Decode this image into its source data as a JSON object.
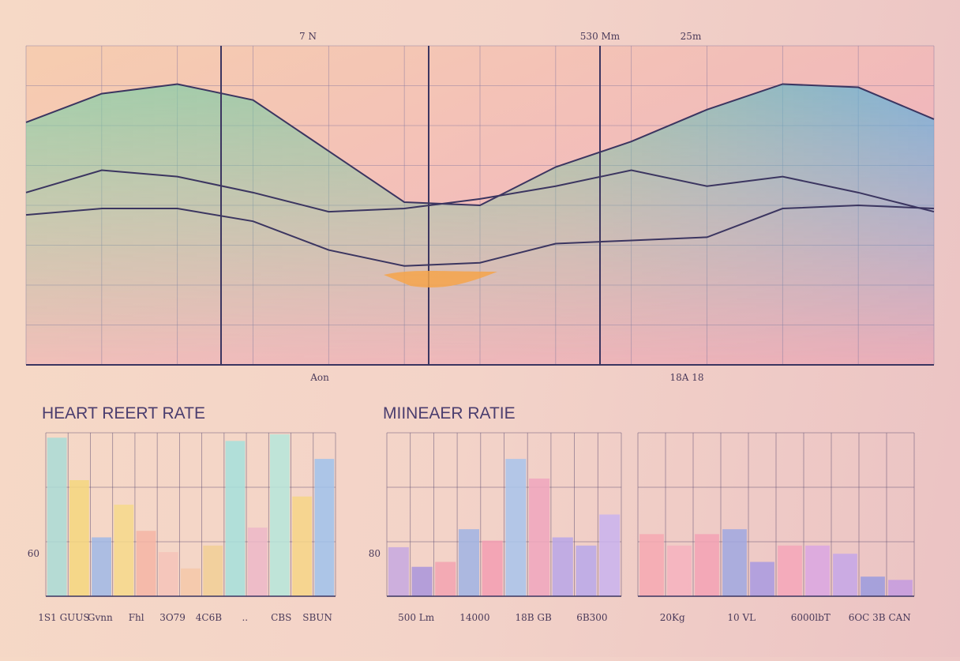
{
  "chart_data": [
    {
      "type": "line",
      "categories": [
        null,
        null,
        null,
        null,
        null,
        null,
        null,
        null,
        null,
        null,
        null,
        null,
        null
      ],
      "top_labels": [
        "7  N",
        "530  Mm",
        "25m"
      ],
      "bottom_labels": [
        "Aon",
        "18A  18"
      ],
      "ylim": [
        0,
        10
      ],
      "grid": true,
      "series": [
        {
          "color": "#6cc4b0",
          "area": true,
          "values": [
            7.6,
            8.5,
            8.8,
            8.3,
            6.7,
            5.1,
            5.0,
            6.2,
            7.0,
            8.0,
            8.8,
            8.7,
            7.7
          ]
        },
        {
          "color": "#3b3560",
          "values": [
            5.4,
            6.1,
            5.9,
            5.4,
            4.8,
            4.9,
            5.2,
            5.6,
            6.1,
            5.6,
            5.9,
            5.4,
            4.8
          ]
        },
        {
          "color": "#3b3560",
          "values": [
            4.7,
            4.9,
            4.9,
            4.5,
            3.6,
            3.1,
            3.2,
            3.8,
            3.9,
            4.0,
            4.9,
            5.0,
            4.9
          ]
        }
      ]
    },
    {
      "type": "bar",
      "title": "HEART REERT RATE",
      "side_label": "60",
      "ylim": [
        0,
        10
      ],
      "grid": true,
      "values": [
        9.7,
        7.1,
        3.6,
        5.6,
        4.0,
        2.7,
        1.7,
        3.1,
        9.5,
        4.2,
        9.9,
        6.1,
        8.4
      ],
      "colors": [
        "#a9dcd6",
        "#f5d77e",
        "#9fb8e6",
        "#f6d98a",
        "#f4b5a5",
        "#f4c3b8",
        "#f4c8a8",
        "#f1cf95",
        "#a4e0dc",
        "#ecb7c8",
        "#b5e6da",
        "#f6d586",
        "#9fc2ec"
      ],
      "footer_labels": [
        "1S1 GUUS",
        "Gvnn",
        "Fhl",
        "3O79",
        "4C6B",
        "..",
        "CBS",
        "SBUN"
      ]
    },
    {
      "type": "bar",
      "title": "MIINEAER RATIE",
      "side_label": "80",
      "ylim": [
        0,
        10
      ],
      "grid": true,
      "values": [
        3.0,
        1.8,
        2.1,
        4.1,
        3.4,
        8.4,
        7.2,
        3.6,
        3.1,
        5.0
      ],
      "colors": [
        "#c5a8e0",
        "#a894dc",
        "#f2a2b0",
        "#9fb4e4",
        "#f39eb2",
        "#a8c4ec",
        "#f0a6bd",
        "#b9a6e8",
        "#b8a8ea",
        "#c9b3ee"
      ],
      "footer_labels": [
        "500 Lm",
        "14000",
        "18B GB",
        "6B300"
      ]
    },
    {
      "type": "bar",
      "ylim": [
        0,
        10
      ],
      "grid": true,
      "values": [
        3.8,
        3.1,
        3.8,
        4.1,
        2.1,
        3.1,
        3.1,
        2.6,
        1.2,
        1.0
      ],
      "colors": [
        "#f6a8b2",
        "#f6b2be",
        "#f3a2b4",
        "#9fa8e0",
        "#a89ae0",
        "#f4a6b8",
        "#d9a6e2",
        "#c4a6e8",
        "#9a9ade",
        "#c49ae0"
      ],
      "footer_labels": [
        "20Kg",
        "10 VL",
        "6000lbT",
        "6OC 3B CAN"
      ]
    }
  ]
}
